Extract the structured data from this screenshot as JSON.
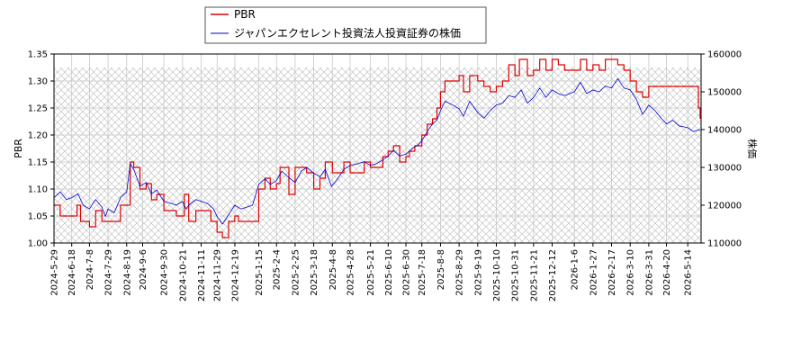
{
  "chart_data": {
    "type": "line",
    "legend": {
      "placement": "top-center",
      "entries": [
        "PBR",
        "ジャパンエクセレント投資法人投資証券の株価"
      ]
    },
    "ylabel_left": "PBR",
    "ylabel_right": "株価",
    "ylim_left": [
      1.0,
      1.35
    ],
    "ylim_right": [
      110000,
      160000
    ],
    "yticks_left": [
      "1.00",
      "1.05",
      "1.10",
      "1.15",
      "1.20",
      "1.25",
      "1.30",
      "1.35"
    ],
    "yticks_right": [
      "110000",
      "120000",
      "130000",
      "140000",
      "150000",
      "160000"
    ],
    "xlim": [
      "2024-05-29",
      "2026-05-29"
    ],
    "x_tick_labels": [
      "2024-5-29",
      "2024-6-18",
      "2024-7-8",
      "2024-7-29",
      "2024-8-19",
      "2024-9-6",
      "2024-9-30",
      "2024-10-21",
      "2024-11-11",
      "2024-11-29",
      "2024-12-19",
      "2025-1-15",
      "2025-2-4",
      "2025-2-25",
      "2025-3-18",
      "2025-4-8",
      "2025-4-28",
      "2025-5-21",
      "2025-6-10",
      "2025-6-30",
      "2025-7-18",
      "2025-8-8",
      "2025-8-29",
      "2025-9-19",
      "2025-10-10",
      "2025-10-31",
      "2025-11-21",
      "2025-12-12",
      "2026-1-6",
      "2026-1-27",
      "2026-2-17",
      "2026-3-10",
      "2026-3-31",
      "2026-4-20",
      "2026-5-14"
    ],
    "grid": true,
    "shaded_region": {
      "y_from": 1.0,
      "y_to": 1.325,
      "pattern": "crosshatch"
    },
    "series": [
      {
        "name": "PBR",
        "axis": "left",
        "color": "#dd0000",
        "points": [
          [
            "2024-05-29",
            1.07
          ],
          [
            "2024-06-05",
            1.05
          ],
          [
            "2024-06-18",
            1.05
          ],
          [
            "2024-06-24",
            1.07
          ],
          [
            "2024-06-28",
            1.04
          ],
          [
            "2024-07-08",
            1.03
          ],
          [
            "2024-07-15",
            1.06
          ],
          [
            "2024-07-22",
            1.04
          ],
          [
            "2024-07-29",
            1.04
          ],
          [
            "2024-08-07",
            1.04
          ],
          [
            "2024-08-12",
            1.07
          ],
          [
            "2024-08-19",
            1.07
          ],
          [
            "2024-08-23",
            1.15
          ],
          [
            "2024-08-27",
            1.14
          ],
          [
            "2024-09-03",
            1.1
          ],
          [
            "2024-09-10",
            1.11
          ],
          [
            "2024-09-16",
            1.08
          ],
          [
            "2024-09-22",
            1.09
          ],
          [
            "2024-09-30",
            1.06
          ],
          [
            "2024-10-08",
            1.06
          ],
          [
            "2024-10-14",
            1.05
          ],
          [
            "2024-10-21",
            1.05
          ],
          [
            "2024-10-23",
            1.09
          ],
          [
            "2024-10-28",
            1.04
          ],
          [
            "2024-11-05",
            1.06
          ],
          [
            "2024-11-11",
            1.06
          ],
          [
            "2024-11-14",
            1.06
          ],
          [
            "2024-11-22",
            1.04
          ],
          [
            "2024-11-29",
            1.02
          ],
          [
            "2024-12-05",
            1.01
          ],
          [
            "2024-12-12",
            1.04
          ],
          [
            "2024-12-19",
            1.05
          ],
          [
            "2024-12-23",
            1.04
          ],
          [
            "2024-12-27",
            1.04
          ],
          [
            "2025-01-08",
            1.04
          ],
          [
            "2025-01-15",
            1.1
          ],
          [
            "2025-01-22",
            1.12
          ],
          [
            "2025-01-28",
            1.1
          ],
          [
            "2025-02-04",
            1.11
          ],
          [
            "2025-02-08",
            1.14
          ],
          [
            "2025-02-14",
            1.14
          ],
          [
            "2025-02-18",
            1.09
          ],
          [
            "2025-02-25",
            1.14
          ],
          [
            "2025-03-04",
            1.14
          ],
          [
            "2025-03-10",
            1.13
          ],
          [
            "2025-03-18",
            1.1
          ],
          [
            "2025-03-25",
            1.12
          ],
          [
            "2025-03-31",
            1.15
          ],
          [
            "2025-04-08",
            1.13
          ],
          [
            "2025-04-14",
            1.13
          ],
          [
            "2025-04-21",
            1.15
          ],
          [
            "2025-04-28",
            1.13
          ],
          [
            "2025-05-07",
            1.13
          ],
          [
            "2025-05-14",
            1.15
          ],
          [
            "2025-05-21",
            1.14
          ],
          [
            "2025-05-28",
            1.14
          ],
          [
            "2025-06-04",
            1.16
          ],
          [
            "2025-06-10",
            1.17
          ],
          [
            "2025-06-16",
            1.18
          ],
          [
            "2025-06-23",
            1.15
          ],
          [
            "2025-06-30",
            1.16
          ],
          [
            "2025-07-04",
            1.17
          ],
          [
            "2025-07-10",
            1.18
          ],
          [
            "2025-07-18",
            1.2
          ],
          [
            "2025-07-24",
            1.22
          ],
          [
            "2025-07-30",
            1.23
          ],
          [
            "2025-08-04",
            1.25
          ],
          [
            "2025-08-08",
            1.28
          ],
          [
            "2025-08-13",
            1.3
          ],
          [
            "2025-08-22",
            1.3
          ],
          [
            "2025-08-29",
            1.31
          ],
          [
            "2025-09-03",
            1.28
          ],
          [
            "2025-09-10",
            1.31
          ],
          [
            "2025-09-19",
            1.3
          ],
          [
            "2025-09-26",
            1.29
          ],
          [
            "2025-10-03",
            1.28
          ],
          [
            "2025-10-10",
            1.29
          ],
          [
            "2025-10-17",
            1.3
          ],
          [
            "2025-10-24",
            1.33
          ],
          [
            "2025-10-31",
            1.31
          ],
          [
            "2025-11-05",
            1.34
          ],
          [
            "2025-11-14",
            1.31
          ],
          [
            "2025-11-21",
            1.32
          ],
          [
            "2025-11-28",
            1.34
          ],
          [
            "2025-12-05",
            1.32
          ],
          [
            "2025-12-12",
            1.34
          ],
          [
            "2025-12-19",
            1.33
          ],
          [
            "2025-12-26",
            1.32
          ],
          [
            "2026-01-06",
            1.32
          ],
          [
            "2026-01-13",
            1.34
          ],
          [
            "2026-01-20",
            1.32
          ],
          [
            "2026-01-27",
            1.33
          ],
          [
            "2026-02-03",
            1.32
          ],
          [
            "2026-02-10",
            1.34
          ],
          [
            "2026-02-17",
            1.34
          ],
          [
            "2026-02-24",
            1.33
          ],
          [
            "2026-03-03",
            1.32
          ],
          [
            "2026-03-10",
            1.3
          ],
          [
            "2026-03-17",
            1.28
          ],
          [
            "2026-03-24",
            1.27
          ],
          [
            "2026-03-31",
            1.29
          ],
          [
            "2026-04-07",
            1.29
          ],
          [
            "2026-04-14",
            1.29
          ],
          [
            "2026-04-20",
            1.29
          ],
          [
            "2026-05-14",
            1.29
          ],
          [
            "2026-05-26",
            1.25
          ],
          [
            "2026-05-28",
            1.23
          ]
        ]
      },
      {
        "name": "ジャパンエクセレント投資法人投資証券の株価",
        "axis": "right",
        "color": "#0000cc",
        "points": [
          [
            "2024-05-29",
            122000
          ],
          [
            "2024-06-05",
            123500
          ],
          [
            "2024-06-12",
            121500
          ],
          [
            "2024-06-18",
            122000
          ],
          [
            "2024-06-25",
            123000
          ],
          [
            "2024-07-01",
            120000
          ],
          [
            "2024-07-08",
            119000
          ],
          [
            "2024-07-15",
            121500
          ],
          [
            "2024-07-22",
            119500
          ],
          [
            "2024-07-26",
            117000
          ],
          [
            "2024-07-29",
            119000
          ],
          [
            "2024-08-05",
            118000
          ],
          [
            "2024-08-12",
            122000
          ],
          [
            "2024-08-19",
            123500
          ],
          [
            "2024-08-23",
            131000
          ],
          [
            "2024-08-27",
            129500
          ],
          [
            "2024-09-03",
            125000
          ],
          [
            "2024-09-10",
            126000
          ],
          [
            "2024-09-16",
            123000
          ],
          [
            "2024-09-22",
            124000
          ],
          [
            "2024-09-30",
            121000
          ],
          [
            "2024-10-08",
            120500
          ],
          [
            "2024-10-14",
            120000
          ],
          [
            "2024-10-21",
            121000
          ],
          [
            "2024-10-25",
            119000
          ],
          [
            "2024-10-28",
            120000
          ],
          [
            "2024-11-05",
            121500
          ],
          [
            "2024-11-11",
            121000
          ],
          [
            "2024-11-18",
            120500
          ],
          [
            "2024-11-25",
            119000
          ],
          [
            "2024-11-29",
            117000
          ],
          [
            "2024-12-05",
            115000
          ],
          [
            "2024-12-12",
            117500
          ],
          [
            "2024-12-19",
            120000
          ],
          [
            "2024-12-26",
            119000
          ],
          [
            "2025-01-08",
            120000
          ],
          [
            "2025-01-15",
            125500
          ],
          [
            "2025-01-22",
            127000
          ],
          [
            "2025-01-28",
            125500
          ],
          [
            "2025-02-04",
            126500
          ],
          [
            "2025-02-10",
            129000
          ],
          [
            "2025-02-17",
            127500
          ],
          [
            "2025-02-25",
            126000
          ],
          [
            "2025-03-04",
            129000
          ],
          [
            "2025-03-10",
            130000
          ],
          [
            "2025-03-18",
            128500
          ],
          [
            "2025-03-25",
            127500
          ],
          [
            "2025-03-31",
            129500
          ],
          [
            "2025-04-07",
            125000
          ],
          [
            "2025-04-14",
            127000
          ],
          [
            "2025-04-21",
            129500
          ],
          [
            "2025-04-28",
            130500
          ],
          [
            "2025-05-07",
            131000
          ],
          [
            "2025-05-14",
            131500
          ],
          [
            "2025-05-21",
            130500
          ],
          [
            "2025-05-28",
            131000
          ],
          [
            "2025-06-04",
            132000
          ],
          [
            "2025-06-10",
            133000
          ],
          [
            "2025-06-16",
            134500
          ],
          [
            "2025-06-23",
            133000
          ],
          [
            "2025-06-30",
            133500
          ],
          [
            "2025-07-07",
            135000
          ],
          [
            "2025-07-14",
            136000
          ],
          [
            "2025-07-18",
            137000
          ],
          [
            "2025-07-24",
            139500
          ],
          [
            "2025-07-30",
            141500
          ],
          [
            "2025-08-04",
            142500
          ],
          [
            "2025-08-08",
            145000
          ],
          [
            "2025-08-13",
            147500
          ],
          [
            "2025-08-22",
            146500
          ],
          [
            "2025-08-29",
            145500
          ],
          [
            "2025-09-03",
            143500
          ],
          [
            "2025-09-10",
            147500
          ],
          [
            "2025-09-19",
            144500
          ],
          [
            "2025-09-26",
            143000
          ],
          [
            "2025-10-03",
            145000
          ],
          [
            "2025-10-10",
            146500
          ],
          [
            "2025-10-17",
            147000
          ],
          [
            "2025-10-24",
            149000
          ],
          [
            "2025-10-31",
            148500
          ],
          [
            "2025-11-07",
            150500
          ],
          [
            "2025-11-14",
            147000
          ],
          [
            "2025-11-21",
            148500
          ],
          [
            "2025-11-28",
            151000
          ],
          [
            "2025-12-05",
            148500
          ],
          [
            "2025-12-12",
            150500
          ],
          [
            "2025-12-19",
            149500
          ],
          [
            "2025-12-26",
            149000
          ],
          [
            "2026-01-06",
            150000
          ],
          [
            "2026-01-13",
            152500
          ],
          [
            "2026-01-20",
            149500
          ],
          [
            "2026-01-27",
            150500
          ],
          [
            "2026-02-03",
            150000
          ],
          [
            "2026-02-10",
            151500
          ],
          [
            "2026-02-17",
            151000
          ],
          [
            "2026-02-24",
            153500
          ],
          [
            "2026-03-03",
            151000
          ],
          [
            "2026-03-10",
            150500
          ],
          [
            "2026-03-17",
            148000
          ],
          [
            "2026-03-24",
            144000
          ],
          [
            "2026-03-31",
            146500
          ],
          [
            "2026-04-07",
            145000
          ],
          [
            "2026-04-14",
            143000
          ],
          [
            "2026-04-20",
            141500
          ],
          [
            "2026-04-27",
            142500
          ],
          [
            "2026-05-04",
            141000
          ],
          [
            "2026-05-14",
            140500
          ],
          [
            "2026-05-20",
            139500
          ],
          [
            "2026-05-28",
            140000
          ]
        ]
      }
    ]
  }
}
